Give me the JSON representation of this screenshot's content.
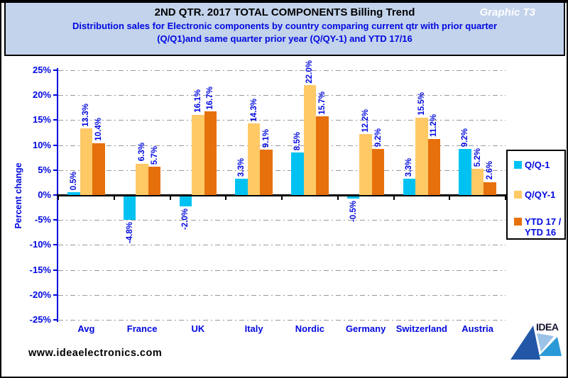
{
  "header": {
    "title_qtr": "2ND QTR. 2017 ",
    "title_main": "TOTAL COMPONENTS Billing Trend",
    "title_right": "Graphic T3",
    "subtitle_line1": "Distribution  sales for Electronic components by country comparing  current qtr with prior quarter",
    "subtitle_line2": "(Q/Q1)and  same quarter prior year (Q/QY-1)  and YTD  17/16"
  },
  "chart_data": {
    "type": "bar",
    "title": "2ND QTR. 2017 TOTAL COMPONENTS Billing Trend",
    "categories": [
      "Avg",
      "France",
      "UK",
      "Italy",
      "Nordic",
      "Germany",
      "Switzerland",
      "Austria"
    ],
    "series": [
      {
        "name": "Q/Q-1",
        "color": "#00c2f2",
        "legend_lines": "Q/Q-1",
        "values": [
          0.5,
          -4.8,
          -2.0,
          3.3,
          8.5,
          -0.5,
          3.3,
          9.2
        ]
      },
      {
        "name": "Q/QY-1",
        "color": "#ffc966",
        "legend_lines": "Q/QY-1",
        "values": [
          13.3,
          6.3,
          16.1,
          14.3,
          22.0,
          12.2,
          15.5,
          5.2
        ]
      },
      {
        "name": "YTD 17 / YTD 16",
        "color": "#e6700c",
        "legend_lines": "YTD 17 /\nYTD 16",
        "values": [
          10.4,
          5.7,
          16.7,
          9.1,
          15.7,
          9.2,
          11.2,
          2.6
        ]
      }
    ],
    "ylabel": "Percent change",
    "ylim": [
      -25,
      25
    ],
    "ytick_step": 5,
    "ytick_suffix": "%",
    "grid": true,
    "legend_position": "right",
    "value_label_format": "one_decimal_percent"
  },
  "colors": {
    "header_bg": "#c3d3ec",
    "text_blue": "#0008e0",
    "title_yellow": "#ffff00",
    "grid_gray": "#999999"
  },
  "footer": {
    "website": "www.ideaelectronics.com",
    "logo_text": "IDEA"
  }
}
